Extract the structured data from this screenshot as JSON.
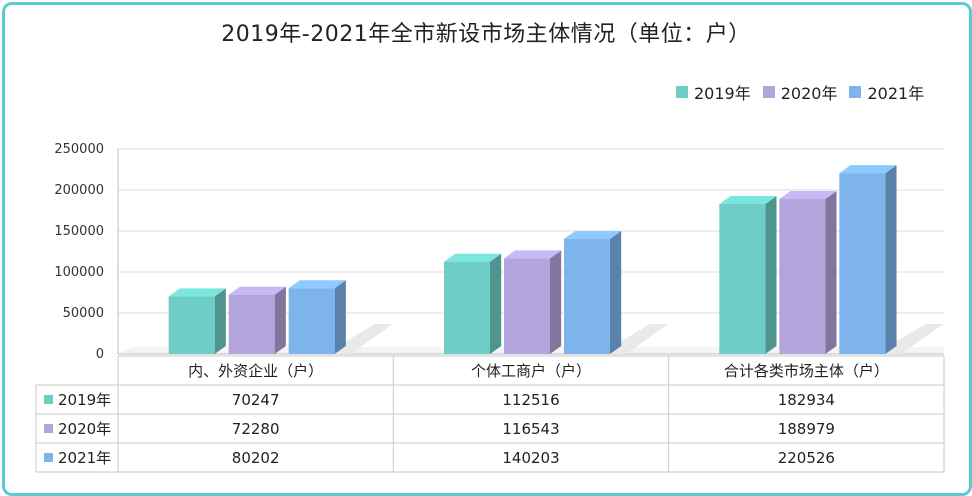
{
  "chart_data": {
    "type": "bar",
    "title": "2019年-2021年全市新设市场主体情况（单位：户）",
    "categories": [
      "内、外资企业（户）",
      "个体工商户（户）",
      "合计各类市场主体（户）"
    ],
    "series": [
      {
        "name": "2019年",
        "values": [
          70247,
          112516,
          182934
        ],
        "color": "#6ecdc6"
      },
      {
        "name": "2020年",
        "values": [
          72280,
          116543,
          188979
        ],
        "color": "#b3a4dc"
      },
      {
        "name": "2021年",
        "values": [
          80202,
          140203,
          220526
        ],
        "color": "#7db4ec"
      }
    ],
    "ylim": [
      0,
      250000
    ],
    "yticks": [
      "0",
      "50000",
      "100000",
      "150000",
      "200000",
      "250000"
    ],
    "table_rows": [
      {
        "label": "2019年",
        "cells": [
          "70247",
          "112516",
          "182934"
        ]
      },
      {
        "label": "2020年",
        "cells": [
          "72280",
          "116543",
          "188979"
        ]
      },
      {
        "label": "2021年",
        "cells": [
          "80202",
          "140203",
          "220526"
        ]
      }
    ],
    "legend_position": "top-right",
    "grid": true
  }
}
